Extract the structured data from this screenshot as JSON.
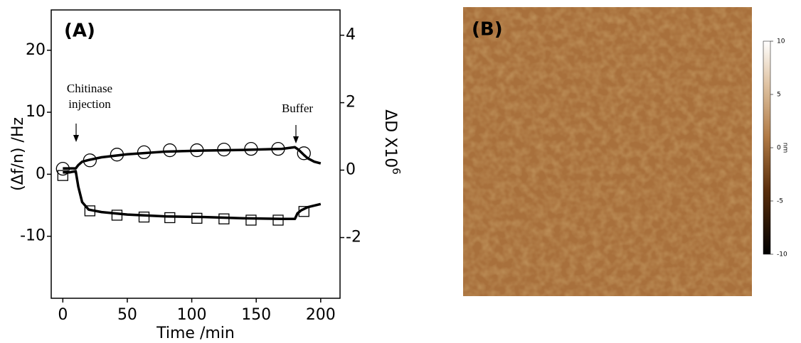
{
  "chart_data": [
    {
      "type": "line",
      "panel_label": "(A)",
      "xlabel": "Time /min",
      "ylabel": "(Δf/n) /Hz",
      "y2label": {
        "text": "ΔD X10",
        "sup": "6"
      },
      "xlim": [
        -9,
        215
      ],
      "xticks": [
        0,
        50,
        100,
        150,
        200
      ],
      "ylim": [
        -20,
        26.5
      ],
      "yticks": [
        -10,
        0,
        10,
        20
      ],
      "y2lim": [
        -3.8,
        4.75
      ],
      "y2ticks": [
        -2,
        0,
        2,
        4
      ],
      "annotations": [
        {
          "text": [
            "Chitinase",
            "injection"
          ]
        },
        {
          "text": [
            "Buffer"
          ]
        }
      ],
      "series": [
        {
          "axis": "y",
          "color": "#000000",
          "marker": "none",
          "x": [
            0,
            5,
            10,
            12,
            15,
            20,
            30,
            50,
            80,
            110,
            140,
            170,
            180,
            182,
            185,
            190,
            200
          ],
          "values": [
            0.3,
            0.3,
            0.5,
            -2,
            -4.5,
            -5.7,
            -6.1,
            -6.5,
            -6.8,
            -6.9,
            -7.1,
            -7.2,
            -7.2,
            -6.3,
            -5.8,
            -5.3,
            -4.8
          ]
        },
        {
          "axis": "y2",
          "color": "#000000",
          "marker": "none",
          "x": [
            0,
            5,
            10,
            12,
            15,
            20,
            30,
            50,
            80,
            110,
            140,
            170,
            180,
            183,
            187,
            190,
            195,
            200
          ],
          "values": [
            0.05,
            0.05,
            0.05,
            0.15,
            0.25,
            0.3,
            0.38,
            0.47,
            0.55,
            0.58,
            0.6,
            0.63,
            0.68,
            0.6,
            0.45,
            0.35,
            0.25,
            0.2
          ]
        },
        {
          "axis": "y",
          "color": "#000000",
          "marker": "square",
          "x": [
            0,
            21,
            42,
            63,
            83,
            104,
            125,
            146,
            167,
            187
          ],
          "values": [
            -0.2,
            -5.9,
            -6.6,
            -6.9,
            -7.0,
            -7.1,
            -7.2,
            -7.4,
            -7.4,
            -6.0
          ]
        },
        {
          "axis": "y2",
          "color": "#000000",
          "marker": "circle",
          "x": [
            0,
            21,
            42,
            63,
            83,
            104,
            125,
            146,
            167,
            187
          ],
          "values": [
            0.04,
            0.29,
            0.46,
            0.53,
            0.59,
            0.59,
            0.61,
            0.63,
            0.63,
            0.5
          ]
        }
      ]
    },
    {
      "type": "image",
      "panel_label": "(B)",
      "colorbar": {
        "lim": [
          -10,
          10
        ],
        "ticks": [
          -10,
          -5,
          0,
          5,
          10
        ],
        "label": "nm"
      }
    }
  ]
}
